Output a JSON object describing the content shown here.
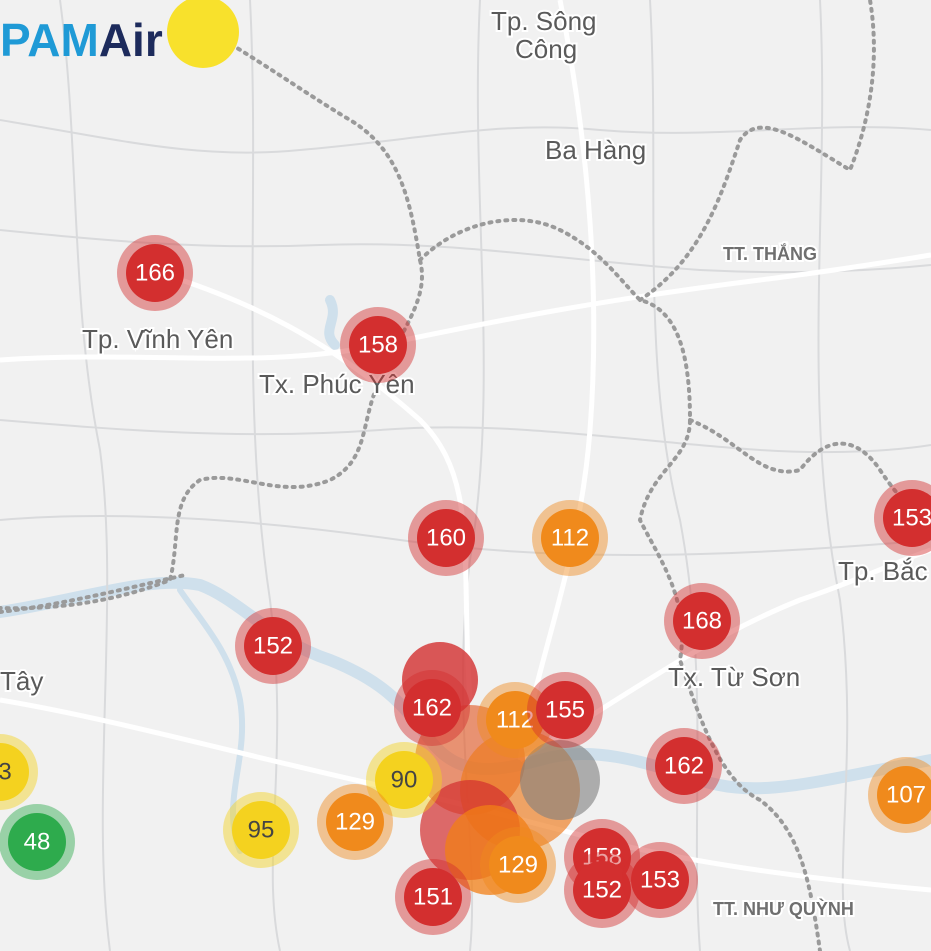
{
  "logo": {
    "brand": "PAM",
    "suffix": "Air"
  },
  "places": [
    {
      "label": "Tp. Sông"
    },
    {
      "label": "Công"
    },
    {
      "label": "Ba Hàng"
    },
    {
      "label": "TT. THẮNG"
    },
    {
      "label": "Tp. Vĩnh Yên"
    },
    {
      "label": "Tx. Phúc Yên"
    },
    {
      "label": "Tp. Bắc"
    },
    {
      "label": "Tx. Từ Sơn"
    },
    {
      "label": "Tây"
    },
    {
      "label": "TT. NHƯ QUỲNH"
    }
  ],
  "markers": [
    {
      "value": 166,
      "color": "#d32f2f"
    },
    {
      "value": 158,
      "color": "#d32f2f"
    },
    {
      "value": 160,
      "color": "#d32f2f"
    },
    {
      "value": 112,
      "color": "#f08a1c"
    },
    {
      "value": 153,
      "color": "#d32f2f"
    },
    {
      "value": 168,
      "color": "#d32f2f"
    },
    {
      "value": 152,
      "color": "#d32f2f"
    },
    {
      "value": 162,
      "color": "#d32f2f"
    },
    {
      "value": 112,
      "color": "#f08a1c"
    },
    {
      "value": 155,
      "color": "#d32f2f"
    },
    {
      "value": 162,
      "color": "#d32f2f"
    },
    {
      "value": 107,
      "color": "#f08a1c"
    },
    {
      "value": 3,
      "color": "#f4d21f"
    },
    {
      "value": 90,
      "color": "#f4d21f"
    },
    {
      "value": 48,
      "color": "#2eab4d"
    },
    {
      "value": 95,
      "color": "#f4d21f"
    },
    {
      "value": 129,
      "color": "#f08a1c"
    },
    {
      "value": 129,
      "color": "#f08a1c"
    },
    {
      "value": 158,
      "color": "#d32f2f"
    },
    {
      "value": 151,
      "color": "#d32f2f"
    },
    {
      "value": 152,
      "color": "#d32f2f"
    },
    {
      "value": 153,
      "color": "#d32f2f"
    }
  ]
}
